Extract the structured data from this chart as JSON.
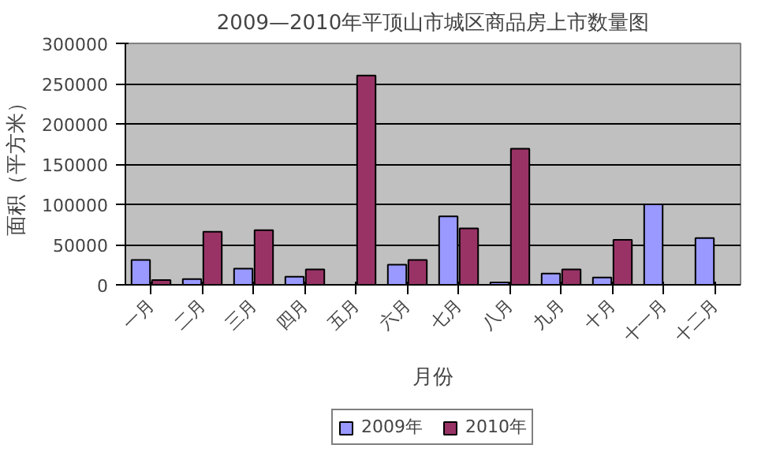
{
  "chart_data": {
    "type": "bar",
    "title": "2009—2010年平顶山市城区商品房上市数量图",
    "xlabel": "月份",
    "ylabel": "面积（平方米）",
    "categories": [
      "一月",
      "二月",
      "三月",
      "四月",
      "五月",
      "六月",
      "七月",
      "八月",
      "九月",
      "十月",
      "十一月",
      "十二月"
    ],
    "series": [
      {
        "name": "2009年",
        "color": "#9999ff",
        "values": [
          31000,
          7000,
          20000,
          10000,
          null,
          25000,
          85000,
          3000,
          14000,
          9000,
          100000,
          58000
        ]
      },
      {
        "name": "2010年",
        "color": "#993366",
        "values": [
          6000,
          66000,
          68000,
          19000,
          260000,
          31000,
          70000,
          169000,
          19000,
          56000,
          null,
          null
        ]
      }
    ],
    "ylim": [
      0,
      300000
    ],
    "yticks": [
      0,
      50000,
      100000,
      150000,
      200000,
      250000,
      300000
    ],
    "grid": "y",
    "legend": "bottom"
  }
}
